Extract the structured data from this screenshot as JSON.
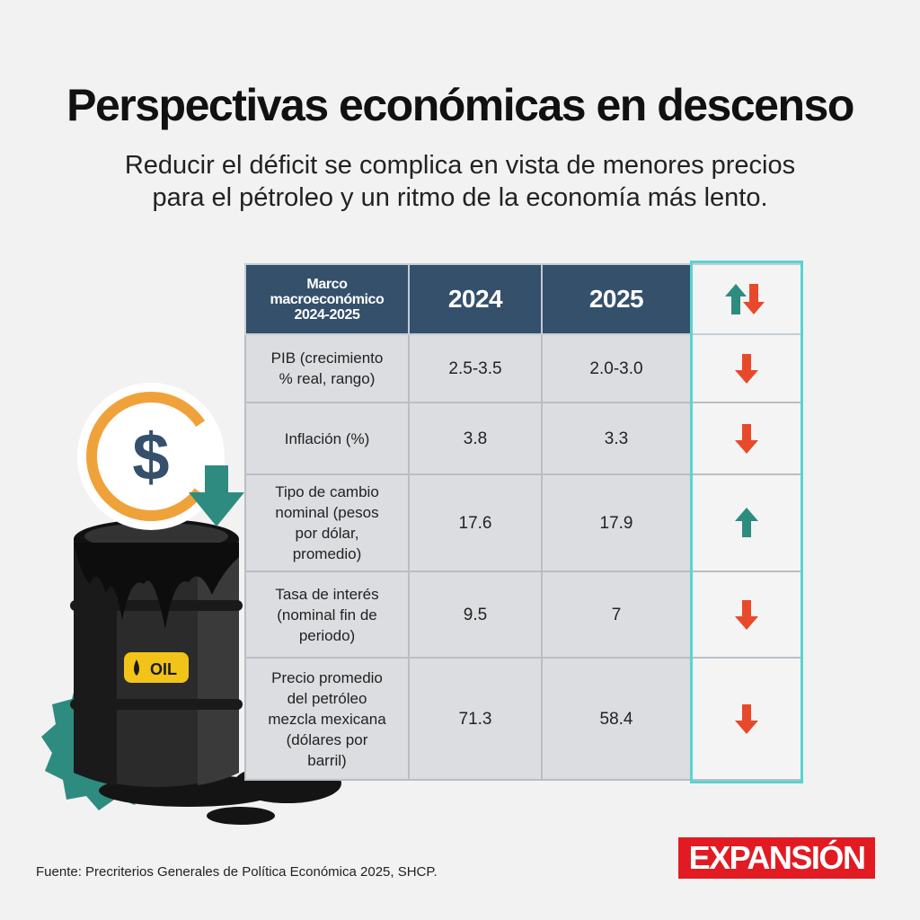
{
  "header": {
    "title": "Perspectivas económicas en descenso",
    "subtitle_lines": [
      "Reducir el déficit se complica en vista de menores precios",
      "para el pétroleo y un ritmo de la economía más lento."
    ]
  },
  "table": {
    "header_label": [
      "Marco",
      "macroeconómico",
      "2024-2025"
    ],
    "col_2024": "2024",
    "col_2025": "2025",
    "trend_header_icon": "up-down-arrows-icon",
    "rows": [
      {
        "label": [
          "PIB (crecimiento",
          "% real, rango)"
        ],
        "v2024": "2.5-3.5",
        "v2025": "2.0-3.0",
        "trend": "down"
      },
      {
        "label": [
          "Inflación (%)"
        ],
        "v2024": "3.8",
        "v2025": "3.3",
        "trend": "down"
      },
      {
        "label": [
          "Tipo de cambio",
          "nominal (pesos",
          "por dólar,",
          "promedio)"
        ],
        "v2024": "17.6",
        "v2025": "17.9",
        "trend": "up"
      },
      {
        "label": [
          "Tasa de interés",
          "(nominal fin de",
          "periodo)"
        ],
        "v2024": "9.5",
        "v2025": "7",
        "trend": "down"
      },
      {
        "label": [
          "Precio promedio",
          "del petróleo",
          "mezcla mexicana",
          "(dólares por",
          "barril)"
        ],
        "v2024": "71.3",
        "v2025": "58.4",
        "trend": "down"
      }
    ]
  },
  "colors": {
    "up": "#2e8b80",
    "down": "#e8492a",
    "header_bg": "#34506b",
    "frame": "#58d4d0",
    "brand": "#e21b23"
  },
  "illustration": {
    "coin_symbol": "$",
    "barrel_label": "OIL",
    "icons": [
      "dollar-coin-icon",
      "down-arrow-icon",
      "oil-barrel-icon",
      "oil-drop-icon",
      "teal-badge-icon"
    ]
  },
  "footer": {
    "source": "Fuente: Precriterios Generales de Política Económica 2025, SHCP.",
    "brand": "EXPANSIÓN"
  }
}
